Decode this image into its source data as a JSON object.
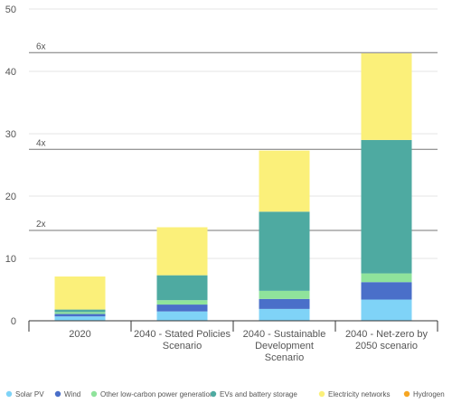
{
  "chart_data": {
    "type": "bar",
    "stacked": true,
    "categories": [
      [
        "2020"
      ],
      [
        "2040 - Stated Policies",
        "Scenario"
      ],
      [
        "2040 - Sustainable",
        "Development",
        "Scenario"
      ],
      [
        "2040 - Net-zero by",
        "2050 scenario"
      ]
    ],
    "series": [
      {
        "name": "Solar PV",
        "color": "#7fd3f7",
        "values": [
          0.7,
          1.5,
          1.9,
          3.4
        ]
      },
      {
        "name": "Wind",
        "color": "#4a6fc9",
        "values": [
          0.4,
          1.1,
          1.6,
          2.8
        ]
      },
      {
        "name": "Other low-carbon power generation",
        "color": "#8fe39b",
        "values": [
          0.3,
          0.7,
          1.3,
          1.4
        ]
      },
      {
        "name": "EVs and battery storage",
        "color": "#4eaaa1",
        "values": [
          0.4,
          4.0,
          12.7,
          21.4
        ]
      },
      {
        "name": "Electricity networks",
        "color": "#fbf07a",
        "values": [
          5.3,
          7.7,
          9.8,
          13.9
        ]
      },
      {
        "name": "Hydrogen",
        "color": "#f6a623",
        "values": [
          0,
          0,
          0,
          0
        ]
      }
    ],
    "y_ticks": [
      0,
      10,
      20,
      30,
      40,
      50
    ],
    "ylim": [
      0,
      50
    ],
    "reference_lines": [
      {
        "label": "2x",
        "value": 14.5
      },
      {
        "label": "4x",
        "value": 27.5
      },
      {
        "label": "6x",
        "value": 43.0
      }
    ],
    "xlabel": "",
    "ylabel": "",
    "legend_position": "bottom",
    "grid": true
  }
}
